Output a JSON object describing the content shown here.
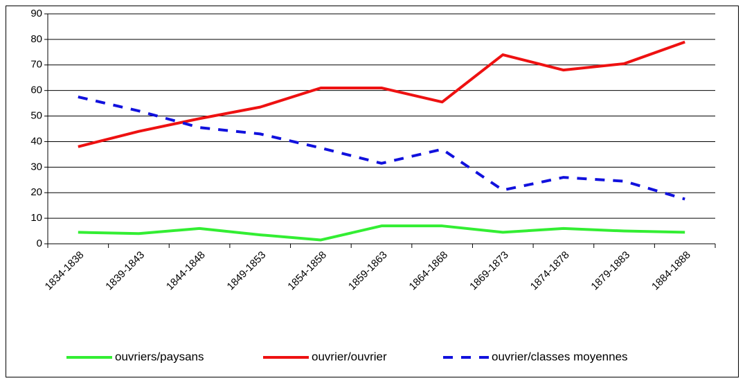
{
  "chart_data": {
    "type": "line",
    "categories": [
      "1834-1838",
      "1839-1843",
      "1844-1848",
      "1849-1853",
      "1854-1858",
      "1859-1863",
      "1864-1868",
      "1869-1873",
      "1874-1878",
      "1879-1883",
      "1884-1888"
    ],
    "series": [
      {
        "name": "ouvriers/paysans",
        "color": "#33ee33",
        "dash": false,
        "values": [
          4.5,
          4,
          6,
          3.5,
          1.5,
          7,
          7,
          4.5,
          6,
          5,
          4.5
        ]
      },
      {
        "name": "ouvrier/ouvrier",
        "color": "#ee1111",
        "dash": false,
        "values": [
          38,
          44,
          49,
          53.5,
          61,
          61,
          55.5,
          74,
          68,
          70.5,
          79
        ]
      },
      {
        "name": "ouvrier/classes moyennes",
        "color": "#1111dd",
        "dash": true,
        "values": [
          57.5,
          52,
          45.5,
          43,
          37.5,
          31.5,
          37,
          21,
          26,
          24.5,
          17.5
        ]
      }
    ],
    "ylim": [
      0,
      90
    ],
    "yticks": [
      0,
      10,
      20,
      30,
      40,
      50,
      60,
      70,
      80,
      90
    ],
    "grid": true,
    "legend": "bottom"
  }
}
